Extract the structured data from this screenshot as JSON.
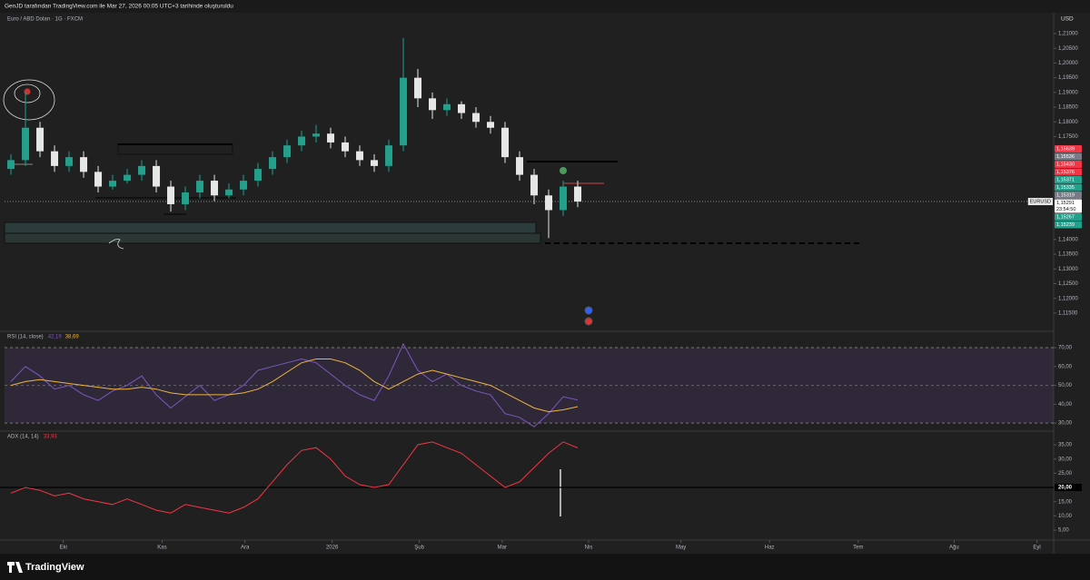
{
  "header": "GenJD tarafından TradingView.com ile Mar 27, 2026 00:05 UTC+3 tarihinde oluşturuldu",
  "footer": "TradingView",
  "chart_data": [
    {
      "type": "candlestick",
      "title": "Euro / ABD Doları · 1G · FXCM",
      "symbol": "EURUSD",
      "currency": "USD",
      "xlim": [
        -0.44,
        71.75
      ],
      "xticks": [
        {
          "value": 3.6,
          "label": "Eki"
        },
        {
          "value": 10.4,
          "label": "Kas"
        },
        {
          "value": 16.1,
          "label": "Ara"
        },
        {
          "value": 22.1,
          "label": "2026"
        },
        {
          "value": 28.1,
          "label": "Şub"
        },
        {
          "value": 33.8,
          "label": "Mar"
        },
        {
          "value": 39.75,
          "label": "Nis"
        },
        {
          "value": 46.1,
          "label": "May"
        },
        {
          "value": 52.2,
          "label": "Haz"
        },
        {
          "value": 58.3,
          "label": "Tem"
        },
        {
          "value": 64.9,
          "label": "Ağu"
        },
        {
          "value": 70.6,
          "label": "Eyl"
        }
      ],
      "ylim": [
        1.1088,
        1.2168
      ],
      "yticks": [
        {
          "value": 1.21,
          "label": "1,21000"
        },
        {
          "value": 1.205,
          "label": "1,20500"
        },
        {
          "value": 1.2,
          "label": "1,20000"
        },
        {
          "value": 1.195,
          "label": "1,19500"
        },
        {
          "value": 1.19,
          "label": "1,19000"
        },
        {
          "value": 1.185,
          "label": "1,18500"
        },
        {
          "value": 1.18,
          "label": "1,18000"
        },
        {
          "value": 1.175,
          "label": "1,17500"
        },
        {
          "value": 1.14,
          "label": "1,14000"
        },
        {
          "value": 1.135,
          "label": "1,13500"
        },
        {
          "value": 1.13,
          "label": "1,13000"
        },
        {
          "value": 1.125,
          "label": "1,12500"
        },
        {
          "value": 1.12,
          "label": "1,12000"
        },
        {
          "value": 1.115,
          "label": "1,11500"
        }
      ],
      "up_color": "#22a08c",
      "down_color": "#e6e6e6",
      "open": [
        1.164,
        1.167,
        1.178,
        1.17,
        1.165,
        1.168,
        1.163,
        1.158,
        1.16,
        1.162,
        1.165,
        1.158,
        1.152,
        1.156,
        1.16,
        1.155,
        1.157,
        1.16,
        1.164,
        1.168,
        1.172,
        1.175,
        1.176,
        1.173,
        1.17,
        1.167,
        1.165,
        1.172,
        1.195,
        1.188,
        1.184,
        1.186,
        1.183,
        1.18,
        1.178,
        1.168,
        1.162,
        1.155,
        1.15,
        1.158
      ],
      "high": [
        1.169,
        1.19,
        1.18,
        1.172,
        1.17,
        1.17,
        1.165,
        1.162,
        1.164,
        1.167,
        1.167,
        1.16,
        1.158,
        1.162,
        1.162,
        1.159,
        1.162,
        1.166,
        1.17,
        1.174,
        1.177,
        1.179,
        1.178,
        1.175,
        1.172,
        1.169,
        1.174,
        1.2085,
        1.198,
        1.19,
        1.188,
        1.187,
        1.185,
        1.182,
        1.18,
        1.17,
        1.164,
        1.157,
        1.16,
        1.16
      ],
      "low": [
        1.162,
        1.165,
        1.168,
        1.163,
        1.163,
        1.161,
        1.156,
        1.157,
        1.159,
        1.16,
        1.156,
        1.1495,
        1.15,
        1.154,
        1.153,
        1.154,
        1.155,
        1.158,
        1.162,
        1.166,
        1.17,
        1.173,
        1.171,
        1.168,
        1.165,
        1.163,
        1.163,
        1.17,
        1.185,
        1.181,
        1.182,
        1.181,
        1.178,
        1.176,
        1.166,
        1.16,
        1.152,
        1.1405,
        1.148,
        1.151
      ],
      "close": [
        1.167,
        1.178,
        1.17,
        1.165,
        1.168,
        1.163,
        1.158,
        1.16,
        1.162,
        1.165,
        1.158,
        1.152,
        1.156,
        1.16,
        1.155,
        1.157,
        1.16,
        1.164,
        1.168,
        1.172,
        1.175,
        1.176,
        1.173,
        1.17,
        1.167,
        1.165,
        1.172,
        1.195,
        1.188,
        1.184,
        1.186,
        1.183,
        1.18,
        1.178,
        1.168,
        1.162,
        1.155,
        1.15,
        1.158,
        1.15291
      ],
      "price_markers": [
        {
          "value": 1.15639,
          "label": "1,15639",
          "color": "#f23645"
        },
        {
          "value": 1.15536,
          "label": "1,15536",
          "color": "#787b86"
        },
        {
          "value": 1.1543,
          "label": "1,15430",
          "color": "#f23645"
        },
        {
          "value": 1.15376,
          "label": "1,15376",
          "color": "#f23645"
        },
        {
          "value": 1.15371,
          "label": "1,15371",
          "color": "#22a08c"
        },
        {
          "value": 1.15335,
          "label": "1,15335",
          "color": "#22a08c"
        },
        {
          "value": 1.15319,
          "label": "1,15319",
          "color": "#787b86"
        },
        {
          "value": 1.15291,
          "label": "1,15291",
          "color": "#ffffff",
          "countdown": "23:54:50"
        },
        {
          "value": 1.15267,
          "label": "1,15267",
          "color": "#22a08c"
        },
        {
          "value": 1.15239,
          "label": "1,15239",
          "color": "#22a08c"
        }
      ]
    },
    {
      "type": "line",
      "title": "RSI (14, close)",
      "xlim": [
        -0.44,
        71.75
      ],
      "ylim": [
        25.7,
        78.7
      ],
      "yticks": [
        {
          "value": 70,
          "label": "70,00"
        },
        {
          "value": 60,
          "label": "60,00"
        },
        {
          "value": 50,
          "label": "50,00"
        },
        {
          "value": 40,
          "label": "40,00"
        },
        {
          "value": 30,
          "label": "30,00"
        }
      ],
      "band": [
        30,
        70
      ],
      "band_color": "#7e57c2",
      "midline": 50,
      "series": [
        {
          "color": "#7e57c2",
          "values": [
            52,
            60,
            55,
            48,
            50,
            45,
            42,
            47,
            50,
            55,
            45,
            38,
            44,
            50,
            42,
            45,
            50,
            58,
            60,
            62,
            64,
            62,
            56,
            50,
            45,
            42,
            55,
            72,
            58,
            52,
            56,
            50,
            47,
            45,
            35,
            33,
            28,
            35,
            44,
            42.19
          ],
          "value_labels": [
            null,
            null,
            null,
            null,
            null,
            null,
            null,
            null,
            null,
            null,
            null,
            null,
            null,
            null,
            null,
            null,
            null,
            null,
            null,
            null,
            null,
            null,
            null,
            null,
            null,
            null,
            null,
            null,
            null,
            null,
            null,
            null,
            null,
            null,
            null,
            null,
            null,
            null,
            null,
            "42,19"
          ]
        },
        {
          "color": "#f0b43c",
          "values": [
            50,
            52,
            53,
            52,
            51,
            50,
            49,
            48,
            48,
            49,
            48,
            46,
            45,
            45,
            45,
            45,
            46,
            48,
            52,
            57,
            62,
            64,
            64,
            62,
            58,
            52,
            48,
            52,
            56,
            58,
            56,
            54,
            52,
            50,
            46,
            42,
            38,
            36,
            37,
            38.69
          ],
          "value_labels": [
            null,
            null,
            null,
            null,
            null,
            null,
            null,
            null,
            null,
            null,
            null,
            null,
            null,
            null,
            null,
            null,
            null,
            null,
            null,
            null,
            null,
            null,
            null,
            null,
            null,
            null,
            null,
            null,
            null,
            null,
            null,
            null,
            null,
            null,
            null,
            null,
            null,
            null,
            null,
            "38,69"
          ]
        }
      ]
    },
    {
      "type": "line",
      "title": "ADX (14, 14)",
      "xlim": [
        -0.44,
        71.75
      ],
      "ylim": [
        1.5,
        39.8
      ],
      "yticks": [
        {
          "value": 35,
          "label": "35,00"
        },
        {
          "value": 30,
          "label": "30,00"
        },
        {
          "value": 25,
          "label": "25,00"
        },
        {
          "value": 15,
          "label": "15,00"
        },
        {
          "value": 10,
          "label": "10,00"
        },
        {
          "value": 5,
          "label": "5,00"
        }
      ],
      "hline": {
        "value": 20,
        "label": "20,00"
      },
      "series": [
        {
          "color": "#f23645",
          "values": [
            18,
            20,
            19,
            17,
            18,
            16,
            15,
            14,
            16,
            14,
            12,
            11,
            14,
            13,
            12,
            11,
            13,
            16,
            22,
            28,
            33,
            34,
            30,
            24,
            21,
            20,
            21,
            28,
            35,
            36,
            34,
            32,
            28,
            24,
            20,
            22,
            27,
            32,
            36,
            33.93
          ],
          "value_labels": [
            null,
            null,
            null,
            null,
            null,
            null,
            null,
            null,
            null,
            null,
            null,
            null,
            null,
            null,
            null,
            null,
            null,
            null,
            null,
            null,
            null,
            null,
            null,
            null,
            null,
            null,
            null,
            null,
            null,
            null,
            null,
            null,
            null,
            null,
            null,
            null,
            null,
            null,
            null,
            "33,93"
          ]
        }
      ]
    }
  ]
}
